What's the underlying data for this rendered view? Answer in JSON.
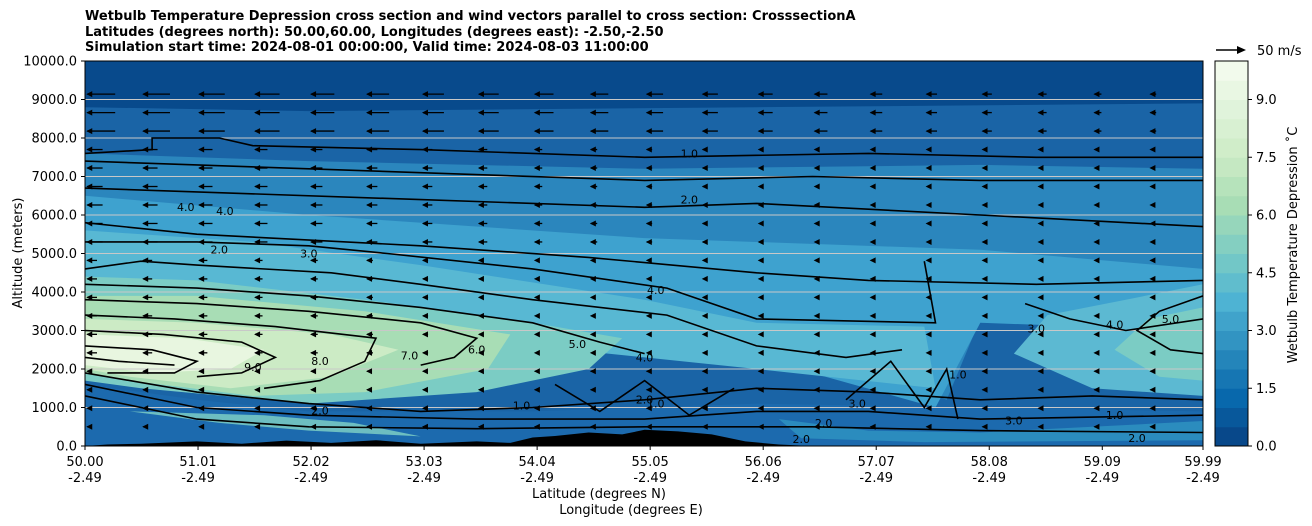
{
  "title_lines": [
    "Wetbulb Temperature Depression cross section and wind vectors parallel to cross section: CrosssectionA",
    "Latitudes (degrees north): 50.00,60.00, Longitudes (degrees east): -2.50,-2.50",
    "Simulation start time: 2024-08-01 00:00:00, Valid time: 2024-08-03 11:00:00"
  ],
  "chart_data": {
    "type": "heatmap",
    "ylabel": "Altitude (meters)",
    "xlabel_lines": [
      "Latitude (degrees N)",
      "Longitude (degrees E)"
    ],
    "x_ticks": [
      {
        "lat": "50.00",
        "lon": "-2.49"
      },
      {
        "lat": "51.01",
        "lon": "-2.49"
      },
      {
        "lat": "52.02",
        "lon": "-2.49"
      },
      {
        "lat": "53.03",
        "lon": "-2.49"
      },
      {
        "lat": "54.04",
        "lon": "-2.49"
      },
      {
        "lat": "55.05",
        "lon": "-2.49"
      },
      {
        "lat": "56.06",
        "lon": "-2.49"
      },
      {
        "lat": "57.07",
        "lon": "-2.49"
      },
      {
        "lat": "58.08",
        "lon": "-2.49"
      },
      {
        "lat": "59.09",
        "lon": "-2.49"
      },
      {
        "lat": "59.99",
        "lon": "-2.49"
      }
    ],
    "xlim": [
      50.0,
      59.99
    ],
    "y_ticks": [
      "0.0",
      "1000.0",
      "2000.0",
      "3000.0",
      "4000.0",
      "5000.0",
      "6000.0",
      "7000.0",
      "8000.0",
      "9000.0",
      "10000.0"
    ],
    "ylim": [
      0,
      10000
    ],
    "colorbar": {
      "label": "Wetbulb Temperature Depression $^\\circ$C",
      "label_display": "Wetbulb Temperature Depression ˚C",
      "ticks": [
        "0.0",
        "1.5",
        "3.0",
        "4.5",
        "6.0",
        "7.5",
        "9.0"
      ],
      "range": [
        0,
        10
      ],
      "colors": [
        "#084081",
        "#0868ac",
        "#2b8cbe",
        "#4eb3d3",
        "#7bccc4",
        "#a8ddb5",
        "#ccebc5",
        "#e0f3db",
        "#f7fcf0"
      ]
    },
    "quiver_key": "50 m/s",
    "contour_labels": [
      {
        "text": "1.0",
        "lat": 55.4,
        "alt": 7500
      },
      {
        "text": "2.0",
        "lat": 55.4,
        "alt": 6300
      },
      {
        "text": "4.0",
        "lat": 50.9,
        "alt": 6100
      },
      {
        "text": "4.0",
        "lat": 51.25,
        "alt": 6000
      },
      {
        "text": "2.0",
        "lat": 51.2,
        "alt": 5000
      },
      {
        "text": "3.0",
        "lat": 52.0,
        "alt": 4900
      },
      {
        "text": "4.0",
        "lat": 55.1,
        "alt": 3950
      },
      {
        "text": "5.0",
        "lat": 54.4,
        "alt": 2550
      },
      {
        "text": "6.0",
        "lat": 53.5,
        "alt": 2400
      },
      {
        "text": "7.0",
        "lat": 52.9,
        "alt": 2250
      },
      {
        "text": "8.0",
        "lat": 52.1,
        "alt": 2100
      },
      {
        "text": "9.0",
        "lat": 51.5,
        "alt": 1950
      },
      {
        "text": "4.0",
        "lat": 55.0,
        "alt": 2200
      },
      {
        "text": "1.0",
        "lat": 57.8,
        "alt": 1750
      },
      {
        "text": "3.0",
        "lat": 58.5,
        "alt": 2950
      },
      {
        "text": "4.0",
        "lat": 59.2,
        "alt": 3050
      },
      {
        "text": "5.0",
        "lat": 59.7,
        "alt": 3200
      },
      {
        "text": "2.0",
        "lat": 55.0,
        "alt": 1100
      },
      {
        "text": "1.0",
        "lat": 55.1,
        "alt": 1000
      },
      {
        "text": "1.0",
        "lat": 53.9,
        "alt": 950
      },
      {
        "text": "3.0",
        "lat": 56.9,
        "alt": 1000
      },
      {
        "text": "2.0",
        "lat": 52.1,
        "alt": 820
      },
      {
        "text": "3.0",
        "lat": 58.3,
        "alt": 560
      },
      {
        "text": "2.0",
        "lat": 59.4,
        "alt": 100
      },
      {
        "text": "2.0",
        "lat": 56.6,
        "alt": 500
      },
      {
        "text": "2.0",
        "lat": 56.4,
        "alt": 80
      },
      {
        "text": "1.0",
        "lat": 59.2,
        "alt": 700
      }
    ]
  }
}
